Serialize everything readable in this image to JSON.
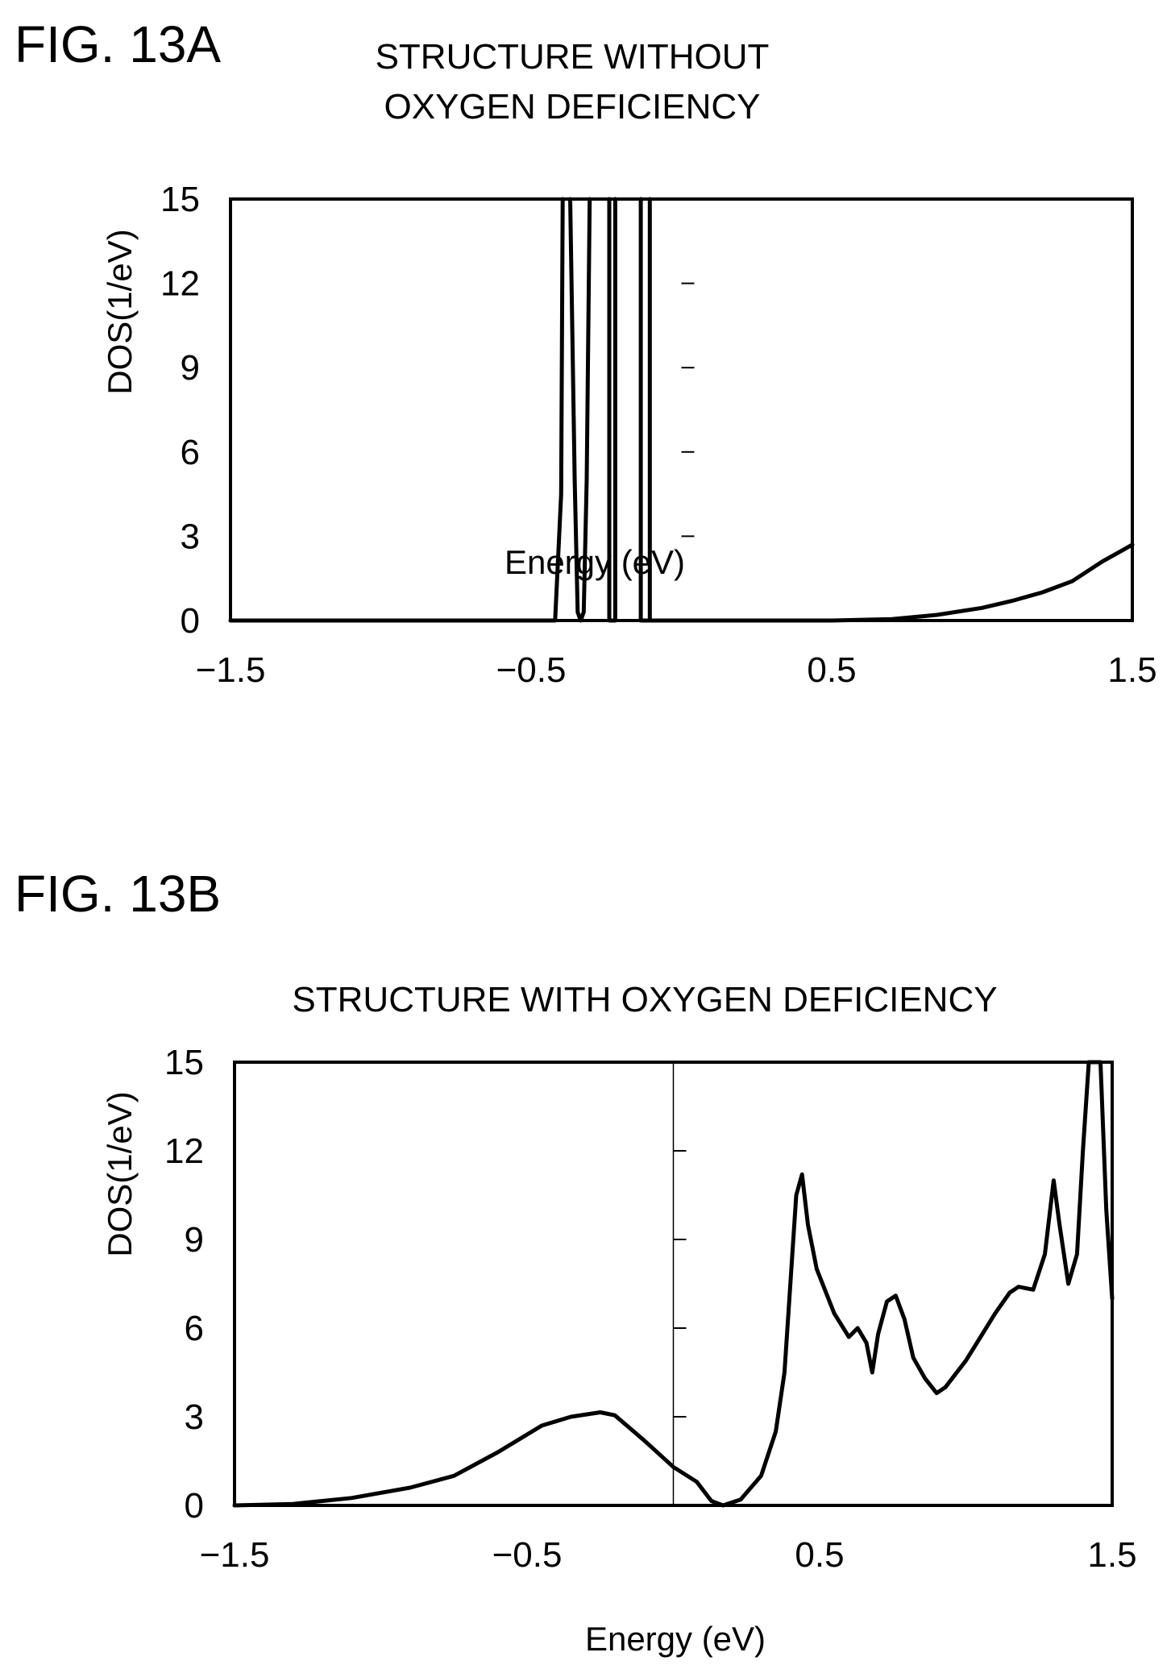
{
  "figure_a": {
    "fig_label": "FIG. 13A"
  },
  "figure_b": {
    "fig_label": "FIG. 13B"
  },
  "chart_data": [
    {
      "type": "line",
      "title": "STRUCTURE WITHOUT OXYGEN DEFICIENCY",
      "xlabel": "Energy (eV)",
      "ylabel": "DOS(1/eV)",
      "xlim": [
        -1.5,
        1.5
      ],
      "ylim": [
        0,
        15
      ],
      "xticks": [
        -1.5,
        -0.5,
        0.5,
        1.5
      ],
      "xtick_labels": [
        "−1.5",
        "−0.5",
        "0.5",
        "1.5"
      ],
      "yticks": [
        0,
        3,
        6,
        9,
        12,
        15
      ],
      "ytick_labels": [
        "0",
        "3",
        "6",
        "9",
        "12",
        "15"
      ],
      "series": [
        {
          "points": [
            [
              -1.5,
              0
            ],
            [
              -0.42,
              0
            ],
            [
              -0.4,
              4.5
            ],
            [
              -0.395,
              15
            ]
          ]
        },
        {
          "points": [
            [
              -0.37,
              15
            ],
            [
              -0.355,
              5
            ],
            [
              -0.345,
              0.3
            ],
            [
              -0.335,
              0
            ],
            [
              -0.325,
              0.3
            ],
            [
              -0.315,
              5
            ],
            [
              -0.305,
              15
            ]
          ]
        },
        {
          "points": [
            [
              -0.24,
              15
            ],
            [
              -0.24,
              0
            ],
            [
              -0.22,
              0
            ],
            [
              -0.22,
              15
            ]
          ]
        },
        {
          "points": [
            [
              -0.135,
              15
            ],
            [
              -0.135,
              0
            ],
            [
              -0.105,
              0
            ],
            [
              -0.105,
              15
            ]
          ]
        },
        {
          "points": [
            [
              -0.105,
              0
            ],
            [
              0.5,
              0
            ],
            [
              0.7,
              0.05
            ],
            [
              0.85,
              0.2
            ],
            [
              1.0,
              0.45
            ],
            [
              1.1,
              0.7
            ],
            [
              1.2,
              1.0
            ],
            [
              1.3,
              1.4
            ],
            [
              1.4,
              2.1
            ],
            [
              1.5,
              2.7
            ]
          ]
        }
      ]
    },
    {
      "type": "line",
      "title": "STRUCTURE WITH OXYGEN DEFICIENCY",
      "xlabel": "Energy (eV)",
      "ylabel": "DOS(1/eV)",
      "xlim": [
        -1.5,
        1.5
      ],
      "ylim": [
        0,
        15
      ],
      "xticks": [
        -1.5,
        -0.5,
        0.5,
        1.5
      ],
      "xtick_labels": [
        "−1.5",
        "−0.5",
        "0.5",
        "1.5"
      ],
      "yticks": [
        0,
        3,
        6,
        9,
        12,
        15
      ],
      "ytick_labels": [
        "0",
        "3",
        "6",
        "9",
        "12",
        "15"
      ],
      "series": [
        {
          "points": [
            [
              -1.5,
              0
            ],
            [
              -1.3,
              0.05
            ],
            [
              -1.1,
              0.25
            ],
            [
              -0.9,
              0.6
            ],
            [
              -0.75,
              1.0
            ],
            [
              -0.6,
              1.8
            ],
            [
              -0.45,
              2.7
            ],
            [
              -0.35,
              3.0
            ],
            [
              -0.25,
              3.15
            ],
            [
              -0.2,
              3.05
            ],
            [
              -0.1,
              2.2
            ],
            [
              0.0,
              1.3
            ],
            [
              0.08,
              0.8
            ],
            [
              0.13,
              0.15
            ],
            [
              0.17,
              0
            ],
            [
              0.23,
              0.2
            ],
            [
              0.3,
              1.0
            ],
            [
              0.35,
              2.5
            ],
            [
              0.38,
              4.5
            ],
            [
              0.4,
              7.5
            ],
            [
              0.42,
              10.5
            ],
            [
              0.44,
              11.2
            ],
            [
              0.46,
              9.5
            ],
            [
              0.49,
              8.0
            ],
            [
              0.55,
              6.5
            ],
            [
              0.6,
              5.7
            ],
            [
              0.63,
              6.0
            ],
            [
              0.66,
              5.5
            ],
            [
              0.68,
              4.5
            ],
            [
              0.7,
              5.8
            ],
            [
              0.73,
              6.9
            ],
            [
              0.76,
              7.1
            ],
            [
              0.79,
              6.3
            ],
            [
              0.82,
              5.0
            ],
            [
              0.86,
              4.3
            ],
            [
              0.9,
              3.8
            ],
            [
              0.93,
              4.0
            ],
            [
              1.0,
              4.9
            ],
            [
              1.05,
              5.7
            ],
            [
              1.1,
              6.5
            ],
            [
              1.15,
              7.2
            ],
            [
              1.18,
              7.4
            ],
            [
              1.23,
              7.3
            ],
            [
              1.27,
              8.5
            ],
            [
              1.3,
              11.0
            ],
            [
              1.32,
              9.5
            ],
            [
              1.35,
              7.5
            ],
            [
              1.38,
              8.5
            ],
            [
              1.4,
              12.0
            ],
            [
              1.42,
              15
            ],
            [
              1.46,
              15
            ],
            [
              1.48,
              10.0
            ],
            [
              1.5,
              7.0
            ]
          ]
        }
      ]
    }
  ]
}
